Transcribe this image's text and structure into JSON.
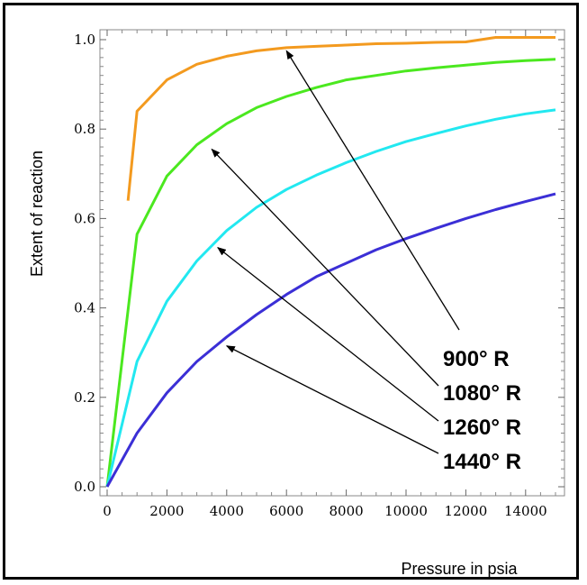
{
  "chart_data": {
    "type": "line",
    "title": "",
    "xlabel": "Pressure in psia",
    "ylabel": "Extent of reaction",
    "xlim": [
      0,
      15000
    ],
    "ylim": [
      0,
      1.0
    ],
    "x_ticks": [
      0,
      2000,
      4000,
      6000,
      8000,
      10000,
      12000,
      14000
    ],
    "x_tick_labels": [
      "0",
      "2000",
      "4000",
      "6000",
      "8000",
      "10000",
      "12000",
      "14000"
    ],
    "y_ticks": [
      0.0,
      0.2,
      0.4,
      0.6,
      0.8,
      1.0
    ],
    "y_tick_labels": [
      "0.0",
      "0.2",
      "0.4",
      "0.6",
      "0.8",
      "1.0"
    ],
    "grid": false,
    "series": [
      {
        "name": "900° R",
        "color": "#f39a1f",
        "x": [
          700,
          1000,
          2000,
          3000,
          4000,
          5000,
          6000,
          7000,
          8000,
          9000,
          10000,
          11000,
          12000,
          13000,
          14000,
          15000
        ],
        "y": [
          0.64,
          0.84,
          0.91,
          0.945,
          0.963,
          0.975,
          0.982,
          0.985,
          0.988,
          0.991,
          0.992,
          0.994,
          0.995,
          1.005,
          1.005,
          1.005
        ]
      },
      {
        "name": "1080° R",
        "color": "#4be81f",
        "x": [
          0,
          1000,
          2000,
          3000,
          4000,
          5000,
          6000,
          7000,
          8000,
          9000,
          10000,
          11000,
          12000,
          13000,
          14000,
          15000
        ],
        "y": [
          0.0,
          0.565,
          0.695,
          0.765,
          0.812,
          0.848,
          0.873,
          0.893,
          0.91,
          0.92,
          0.93,
          0.937,
          0.943,
          0.949,
          0.953,
          0.956
        ]
      },
      {
        "name": "1260° R",
        "color": "#22e8f0",
        "x": [
          0,
          1000,
          2000,
          3000,
          4000,
          5000,
          6000,
          7000,
          8000,
          9000,
          10000,
          11000,
          12000,
          13000,
          14000,
          15000
        ],
        "y": [
          0.0,
          0.28,
          0.415,
          0.505,
          0.573,
          0.625,
          0.665,
          0.697,
          0.725,
          0.75,
          0.772,
          0.79,
          0.807,
          0.822,
          0.834,
          0.843
        ]
      },
      {
        "name": "1440° R",
        "color": "#3b2fd6",
        "x": [
          0,
          1000,
          2000,
          3000,
          4000,
          5000,
          6000,
          7000,
          8000,
          9000,
          10000,
          11000,
          12000,
          13000,
          14000,
          15000
        ],
        "y": [
          0.0,
          0.12,
          0.21,
          0.28,
          0.335,
          0.385,
          0.43,
          0.47,
          0.5,
          0.53,
          0.555,
          0.578,
          0.6,
          0.62,
          0.638,
          0.655
        ]
      }
    ],
    "annotations": [
      {
        "text": "900° R",
        "series": "900° R",
        "arrow_to": [
          6000,
          0.975
        ]
      },
      {
        "text": "1080° R",
        "series": "1080° R",
        "arrow_to": [
          3500,
          0.755
        ]
      },
      {
        "text": "1260° R",
        "series": "1260° R",
        "arrow_to": [
          3700,
          0.535
        ]
      },
      {
        "text": "1440° R",
        "series": "1440° R",
        "arrow_to": [
          4000,
          0.315
        ]
      }
    ]
  }
}
